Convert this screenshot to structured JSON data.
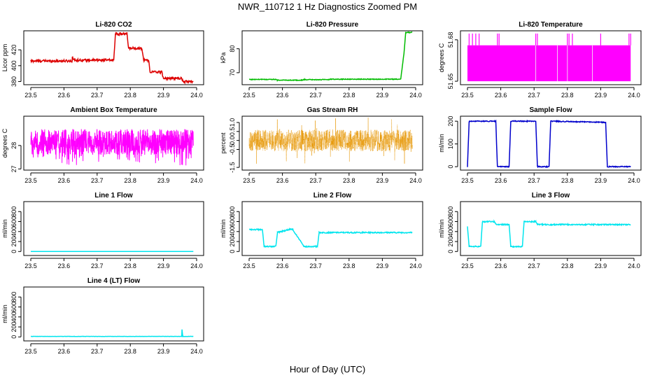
{
  "figure": {
    "title": "NWR_110712  1 Hz Diagnostics Zoomed PM",
    "xlabel": "Hour of Day (UTC)"
  },
  "chart_data": [
    {
      "type": "line",
      "title": "Li-820 CO2",
      "ylabel": "Licor ppm",
      "color": "#dd0000",
      "xlim": [
        23.5,
        24.0
      ],
      "ylim": [
        376,
        444
      ],
      "xticks": [
        23.5,
        23.6,
        23.7,
        23.8,
        23.9,
        24.0
      ],
      "yticks": [
        380,
        400,
        420
      ],
      "x": [
        23.5,
        23.625,
        23.625,
        23.63,
        23.75,
        23.755,
        23.79,
        23.795,
        23.835,
        23.84,
        23.855,
        23.86,
        23.895,
        23.9,
        23.955,
        23.96,
        23.99
      ],
      "y": [
        406,
        406,
        412,
        407,
        407,
        440,
        440,
        422,
        422,
        407,
        407,
        392,
        392,
        384,
        384,
        380,
        380
      ],
      "noise": 1.5
    },
    {
      "type": "line",
      "title": "Li-820 Pressure",
      "ylabel": "kPa",
      "color": "#00bb00",
      "xlim": [
        23.5,
        24.0
      ],
      "ylim": [
        65,
        87.5
      ],
      "xticks": [
        23.5,
        23.6,
        23.7,
        23.8,
        23.9,
        24.0
      ],
      "yticks": [
        70,
        80
      ],
      "x": [
        23.5,
        23.58,
        23.585,
        23.66,
        23.665,
        23.74,
        23.745,
        23.95,
        23.955,
        23.965,
        23.97,
        23.99
      ],
      "y": [
        67.2,
        67.2,
        66.9,
        66.9,
        67.1,
        67.1,
        67.3,
        67.3,
        67.4,
        78,
        86.8,
        86.8
      ],
      "noise": 0.15
    },
    {
      "type": "area",
      "title": "Li-820 Temperature",
      "ylabel": "degrees C",
      "color": "#ff00ff",
      "xlim": [
        23.5,
        24.0
      ],
      "ylim": [
        51.6475,
        51.6865
      ],
      "xticks": [
        23.5,
        23.6,
        23.7,
        23.8,
        23.9,
        24.0
      ],
      "yticks": [
        51.65,
        51.68
      ],
      "band": [
        51.65,
        51.676
      ],
      "spikes": [
        23.505,
        23.515,
        23.525,
        23.535,
        23.59,
        23.595,
        23.705,
        23.71,
        23.8,
        23.805,
        23.815,
        23.9,
        23.985,
        23.99
      ],
      "spike_top": 51.6845
    },
    {
      "type": "line",
      "title": "Ambient Box Temperature",
      "ylabel": "degrees C",
      "color": "#ff00ff",
      "xlim": [
        23.5,
        24.0
      ],
      "ylim": [
        26.95,
        29.25
      ],
      "xticks": [
        23.5,
        23.6,
        23.7,
        23.8,
        23.9,
        24.0
      ],
      "yticks": [
        27.0,
        28.0
      ],
      "center": 28.15,
      "spread": 0.55,
      "dips": 27.15
    },
    {
      "type": "scatter",
      "title": "Gas Stream RH",
      "ylabel": "percent",
      "color": "#e69500",
      "xlim": [
        23.5,
        24.0
      ],
      "ylim": [
        -1.65,
        1.35
      ],
      "xticks": [
        23.5,
        23.6,
        23.7,
        23.8,
        23.9,
        24.0
      ],
      "yticks": [
        -1.5,
        -0.5,
        0.0,
        0.5,
        1.0
      ],
      "center": 0.0,
      "spread": 0.6
    },
    {
      "type": "line",
      "title": "Sample Flow",
      "ylabel": "ml/min",
      "color": "#0000cc",
      "xlim": [
        23.5,
        24.0
      ],
      "ylim": [
        -15,
        222
      ],
      "xticks": [
        23.5,
        23.6,
        23.7,
        23.8,
        23.9,
        24.0
      ],
      "yticks": [
        0,
        100,
        200
      ],
      "x": [
        23.5,
        23.505,
        23.585,
        23.59,
        23.625,
        23.63,
        23.705,
        23.71,
        23.745,
        23.75,
        23.915,
        23.92,
        23.99
      ],
      "y": [
        0,
        200,
        200,
        0,
        0,
        200,
        200,
        0,
        0,
        200,
        195,
        0,
        0
      ],
      "noise": 2
    },
    {
      "type": "line",
      "title": "Line 1 Flow",
      "ylabel": "ml/min",
      "color": "#00e5ee",
      "xlim": [
        23.5,
        24.0
      ],
      "ylim": [
        -80,
        1000
      ],
      "xticks": [
        23.5,
        23.6,
        23.7,
        23.8,
        23.9,
        24.0
      ],
      "yticks": [
        0,
        200,
        400,
        600,
        800
      ],
      "x": [
        23.5,
        23.99
      ],
      "y": [
        0,
        0
      ],
      "noise": 0
    },
    {
      "type": "line",
      "title": "Line 2 Flow",
      "ylabel": "ml/min",
      "color": "#00e5ee",
      "xlim": [
        23.5,
        24.0
      ],
      "ylim": [
        -80,
        1000
      ],
      "xticks": [
        23.5,
        23.6,
        23.7,
        23.8,
        23.9,
        24.0
      ],
      "yticks": [
        0,
        200,
        400,
        600,
        800
      ],
      "x": [
        23.5,
        23.54,
        23.545,
        23.58,
        23.585,
        23.625,
        23.63,
        23.665,
        23.67,
        23.705,
        23.71,
        23.99
      ],
      "y": [
        440,
        440,
        100,
        100,
        380,
        450,
        450,
        100,
        100,
        100,
        380,
        380
      ],
      "noise": 12
    },
    {
      "type": "line",
      "title": "Line 3 Flow",
      "ylabel": "ml/min",
      "color": "#00e5ee",
      "xlim": [
        23.5,
        24.0
      ],
      "ylim": [
        -80,
        1000
      ],
      "xticks": [
        23.5,
        23.6,
        23.7,
        23.8,
        23.9,
        24.0
      ],
      "yticks": [
        0,
        200,
        400,
        600,
        800
      ],
      "x": [
        23.5,
        23.505,
        23.54,
        23.545,
        23.58,
        23.585,
        23.625,
        23.63,
        23.665,
        23.67,
        23.705,
        23.71,
        23.99
      ],
      "y": [
        500,
        100,
        100,
        600,
        600,
        540,
        540,
        100,
        100,
        600,
        600,
        540,
        540
      ],
      "noise": 12
    },
    {
      "type": "line",
      "title": "Line 4 (LT) Flow",
      "ylabel": "ml/min",
      "color": "#00e5ee",
      "xlim": [
        23.5,
        24.0
      ],
      "ylim": [
        -80,
        1000
      ],
      "xticks": [
        23.5,
        23.6,
        23.7,
        23.8,
        23.9,
        24.0
      ],
      "yticks": [
        0,
        200,
        400,
        600,
        800
      ],
      "x": [
        23.5,
        23.955,
        23.956,
        23.958,
        23.96,
        23.99
      ],
      "y": [
        10,
        10,
        150,
        10,
        10,
        10
      ],
      "noise": 2
    }
  ]
}
